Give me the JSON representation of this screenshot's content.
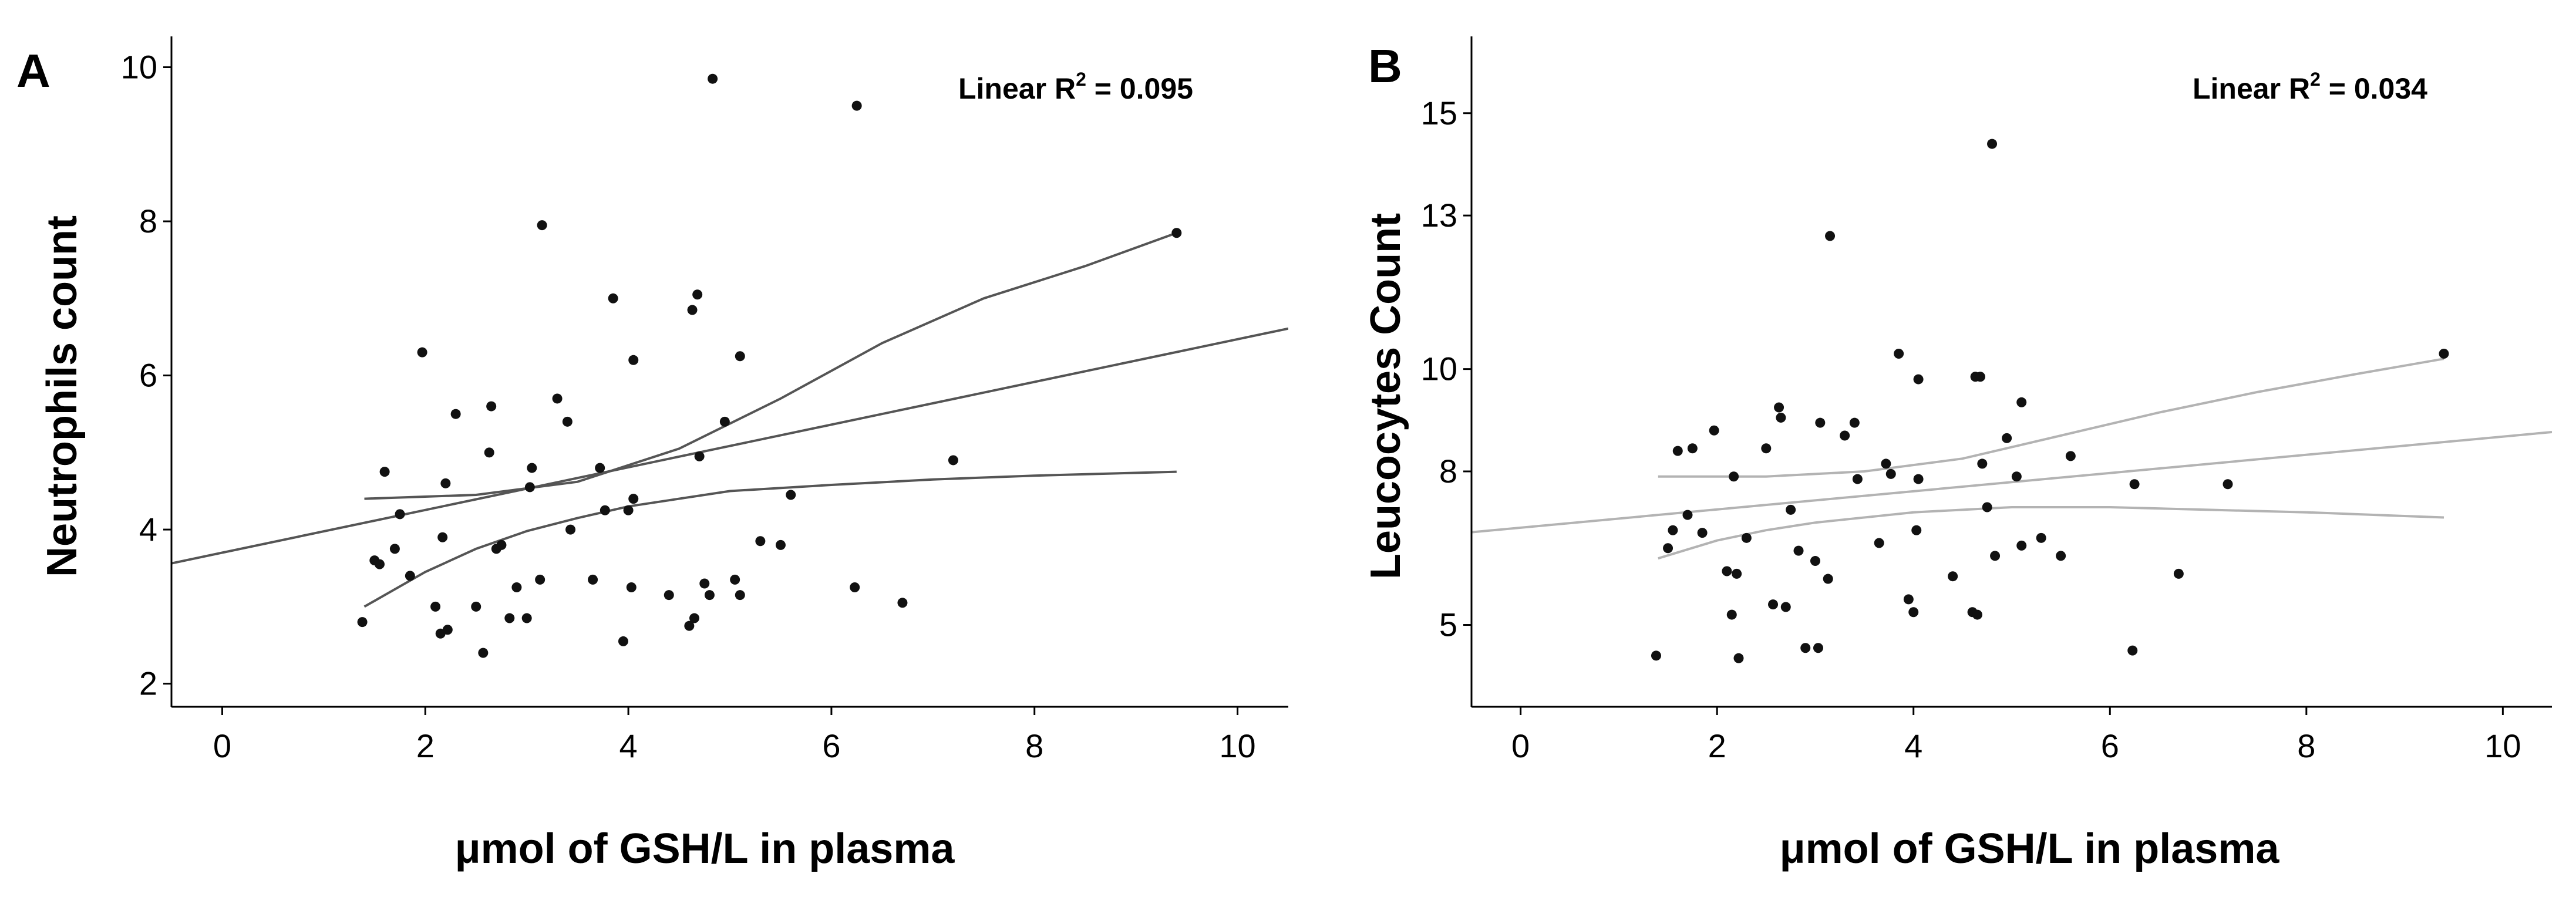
{
  "chart_data": [
    {
      "type": "scatter",
      "panel_letter": "A",
      "xlabel": "μmol of GSH/L in plasma",
      "ylabel": "Neutrophils count",
      "xlim": [
        -0.5,
        10.5
      ],
      "ylim": [
        1.7,
        10.4
      ],
      "x_ticks": [
        0,
        2,
        4,
        6,
        8,
        10
      ],
      "y_ticks": [
        2,
        4,
        6,
        8,
        10
      ],
      "annotation": {
        "prefix": "Linear R",
        "sup": "2",
        "suffix": " = 0.095"
      },
      "line_color": "#555555",
      "fit": {
        "intercept": 3.7,
        "slope": 0.277
      },
      "ci_upper": [
        [
          1.4,
          4.4
        ],
        [
          2.5,
          4.45
        ],
        [
          3.5,
          4.62
        ],
        [
          4.5,
          5.05
        ],
        [
          5.5,
          5.7
        ],
        [
          6.5,
          6.42
        ],
        [
          7.5,
          7.0
        ],
        [
          8.5,
          7.42
        ],
        [
          9.4,
          7.85
        ]
      ],
      "ci_lower": [
        [
          1.4,
          3.0
        ],
        [
          2.0,
          3.45
        ],
        [
          2.5,
          3.75
        ],
        [
          3.0,
          3.98
        ],
        [
          3.5,
          4.15
        ],
        [
          4.0,
          4.3
        ],
        [
          5.0,
          4.5
        ],
        [
          6.0,
          4.58
        ],
        [
          7.0,
          4.65
        ],
        [
          8.0,
          4.7
        ],
        [
          9.4,
          4.75
        ]
      ],
      "points": [
        [
          1.38,
          2.8
        ],
        [
          1.5,
          3.6
        ],
        [
          1.55,
          3.55
        ],
        [
          1.6,
          4.75
        ],
        [
          1.7,
          3.75
        ],
        [
          1.75,
          4.2
        ],
        [
          1.85,
          3.4
        ],
        [
          1.97,
          6.3
        ],
        [
          2.1,
          3.0
        ],
        [
          2.15,
          2.65
        ],
        [
          2.17,
          3.9
        ],
        [
          2.2,
          4.6
        ],
        [
          2.22,
          2.7
        ],
        [
          2.3,
          5.5
        ],
        [
          2.5,
          3.0
        ],
        [
          2.57,
          2.4
        ],
        [
          2.63,
          5.0
        ],
        [
          2.65,
          5.6
        ],
        [
          2.7,
          3.75
        ],
        [
          2.75,
          3.8
        ],
        [
          2.83,
          2.85
        ],
        [
          2.9,
          3.25
        ],
        [
          3.0,
          2.85
        ],
        [
          3.03,
          4.55
        ],
        [
          3.05,
          4.8
        ],
        [
          3.13,
          3.35
        ],
        [
          3.15,
          7.95
        ],
        [
          3.3,
          5.7
        ],
        [
          3.4,
          5.4
        ],
        [
          3.43,
          4.0
        ],
        [
          3.65,
          3.35
        ],
        [
          3.72,
          4.8
        ],
        [
          3.77,
          4.25
        ],
        [
          3.85,
          7.0
        ],
        [
          3.95,
          2.55
        ],
        [
          4.0,
          4.25
        ],
        [
          4.05,
          4.4
        ],
        [
          4.05,
          6.2
        ],
        [
          4.03,
          3.25
        ],
        [
          4.4,
          3.15
        ],
        [
          4.6,
          2.75
        ],
        [
          4.63,
          6.85
        ],
        [
          4.68,
          7.05
        ],
        [
          4.7,
          4.95
        ],
        [
          4.65,
          2.85
        ],
        [
          4.75,
          3.3
        ],
        [
          4.8,
          3.15
        ],
        [
          4.83,
          9.85
        ],
        [
          4.95,
          5.4
        ],
        [
          5.05,
          3.35
        ],
        [
          5.1,
          3.15
        ],
        [
          5.1,
          6.25
        ],
        [
          5.3,
          3.85
        ],
        [
          5.5,
          3.8
        ],
        [
          5.6,
          4.45
        ],
        [
          6.23,
          3.25
        ],
        [
          6.25,
          9.5
        ],
        [
          6.7,
          3.05
        ],
        [
          7.2,
          4.9
        ],
        [
          9.4,
          7.85
        ]
      ]
    },
    {
      "type": "scatter",
      "panel_letter": "B",
      "xlabel": "μmol of GSH/L in plasma",
      "ylabel": "Leucocytes Count",
      "xlim": [
        -0.5,
        10.5
      ],
      "ylim": [
        3.4,
        16.5
      ],
      "x_ticks": [
        0,
        2,
        4,
        6,
        8,
        10
      ],
      "y_ticks": [
        5,
        8,
        10,
        13,
        15
      ],
      "annotation": {
        "prefix": "Linear R",
        "sup": "2",
        "suffix": " = 0.034"
      },
      "line_color": "#b3b3b3",
      "fit": {
        "intercept": 6.9,
        "slope": 0.178
      },
      "ci_upper": [
        [
          1.4,
          7.9
        ],
        [
          2.5,
          7.9
        ],
        [
          3.5,
          8.0
        ],
        [
          4.5,
          8.25
        ],
        [
          5.5,
          8.7
        ],
        [
          6.5,
          9.15
        ],
        [
          7.5,
          9.55
        ],
        [
          8.5,
          9.9
        ],
        [
          9.4,
          10.2
        ]
      ],
      "ci_lower": [
        [
          1.4,
          6.3
        ],
        [
          2.0,
          6.65
        ],
        [
          2.5,
          6.85
        ],
        [
          3.0,
          7.0
        ],
        [
          4.0,
          7.2
        ],
        [
          5.0,
          7.3
        ],
        [
          6.0,
          7.3
        ],
        [
          7.0,
          7.25
        ],
        [
          8.0,
          7.2
        ],
        [
          9.4,
          7.1
        ]
      ],
      "points": [
        [
          1.38,
          4.4
        ],
        [
          1.5,
          6.5
        ],
        [
          1.55,
          6.85
        ],
        [
          1.6,
          8.4
        ],
        [
          1.7,
          7.15
        ],
        [
          1.75,
          8.45
        ],
        [
          1.85,
          6.8
        ],
        [
          1.97,
          8.8
        ],
        [
          2.1,
          6.05
        ],
        [
          2.15,
          5.2
        ],
        [
          2.17,
          7.9
        ],
        [
          2.2,
          6.0
        ],
        [
          2.22,
          4.35
        ],
        [
          2.3,
          6.7
        ],
        [
          2.5,
          8.45
        ],
        [
          2.57,
          5.4
        ],
        [
          2.63,
          9.25
        ],
        [
          2.65,
          9.05
        ],
        [
          2.7,
          5.35
        ],
        [
          2.75,
          7.25
        ],
        [
          2.83,
          6.45
        ],
        [
          2.9,
          4.55
        ],
        [
          3.0,
          6.25
        ],
        [
          3.03,
          4.55
        ],
        [
          3.05,
          8.95
        ],
        [
          3.13,
          5.9
        ],
        [
          3.15,
          12.6
        ],
        [
          3.3,
          8.7
        ],
        [
          3.4,
          8.95
        ],
        [
          3.43,
          7.85
        ],
        [
          3.65,
          6.6
        ],
        [
          3.72,
          8.15
        ],
        [
          3.77,
          7.95
        ],
        [
          3.85,
          10.3
        ],
        [
          3.95,
          5.5
        ],
        [
          4.0,
          5.25
        ],
        [
          4.05,
          7.85
        ],
        [
          4.05,
          9.8
        ],
        [
          4.03,
          6.85
        ],
        [
          4.4,
          5.95
        ],
        [
          4.6,
          5.25
        ],
        [
          4.63,
          9.85
        ],
        [
          4.68,
          9.85
        ],
        [
          4.7,
          8.15
        ],
        [
          4.65,
          5.2
        ],
        [
          4.75,
          7.3
        ],
        [
          4.8,
          14.4
        ],
        [
          4.83,
          6.35
        ],
        [
          4.95,
          8.65
        ],
        [
          5.05,
          7.9
        ],
        [
          5.1,
          9.35
        ],
        [
          5.1,
          6.55
        ],
        [
          5.3,
          6.7
        ],
        [
          5.5,
          6.35
        ],
        [
          5.6,
          8.3
        ],
        [
          6.23,
          4.5
        ],
        [
          6.25,
          7.75
        ],
        [
          6.7,
          6.0
        ],
        [
          7.2,
          7.75
        ],
        [
          9.4,
          10.3
        ]
      ]
    }
  ]
}
